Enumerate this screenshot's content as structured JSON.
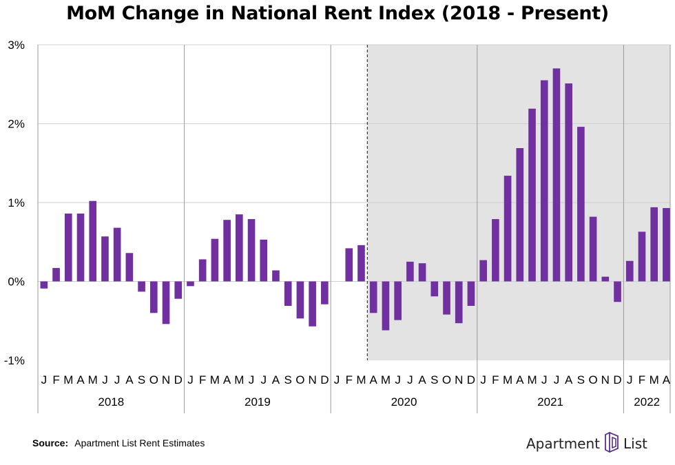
{
  "title": "MoM Change in National Rent Index (2018 - Present)",
  "source": {
    "label": "Source:",
    "text": "Apartment List Rent Estimates"
  },
  "brand": {
    "part1": "Apartment",
    "part2": "List",
    "logo_icon": "apartment-list-building-mark-icon",
    "logo_color": "#5b2d8e"
  },
  "colors": {
    "bar": "#7030a0",
    "shade": "#e3e3e3",
    "grid": "#cfcfcf",
    "divider": "#9a9a9a"
  },
  "chart_data": {
    "type": "bar",
    "title": "MoM Change in National Rent Index (2018 - Present)",
    "ylim": [
      -1,
      3
    ],
    "yticks": [
      "-1%",
      "0%",
      "1%",
      "2%",
      "3%"
    ],
    "ytick_values": [
      -1,
      0,
      1,
      2,
      3
    ],
    "grid": true,
    "years": [
      "2018",
      "2019",
      "2020",
      "2021",
      "2022"
    ],
    "categories": [
      "J",
      "F",
      "M",
      "A",
      "M",
      "J",
      "J",
      "A",
      "S",
      "O",
      "N",
      "D",
      "J",
      "F",
      "M",
      "A",
      "M",
      "J",
      "J",
      "A",
      "S",
      "O",
      "N",
      "D",
      "J",
      "F",
      "M",
      "A",
      "M",
      "J",
      "J",
      "A",
      "S",
      "O",
      "N",
      "D",
      "J",
      "F",
      "M",
      "A",
      "M",
      "J",
      "J",
      "A",
      "S",
      "O",
      "N",
      "D",
      "J",
      "F",
      "M",
      "A"
    ],
    "values": [
      -0.09,
      0.17,
      0.86,
      0.86,
      1.02,
      0.57,
      0.68,
      0.36,
      -0.13,
      -0.4,
      -0.54,
      -0.22,
      -0.06,
      0.28,
      0.54,
      0.78,
      0.85,
      0.79,
      0.53,
      0.14,
      -0.31,
      -0.47,
      -0.57,
      -0.29,
      0.0,
      0.42,
      0.46,
      -0.4,
      -0.62,
      -0.49,
      0.25,
      0.23,
      -0.19,
      -0.42,
      -0.53,
      -0.31,
      0.27,
      0.79,
      1.34,
      1.69,
      2.19,
      2.55,
      2.7,
      2.51,
      1.96,
      0.82,
      0.06,
      -0.26,
      0.26,
      0.63,
      0.94,
      0.93
    ],
    "shaded_from": "2020 A",
    "shaded_to": "2022 A"
  }
}
